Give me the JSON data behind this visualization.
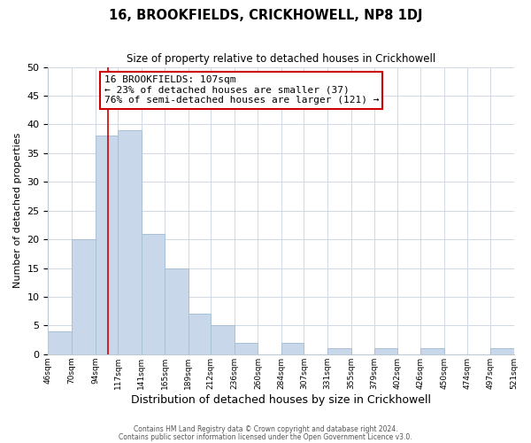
{
  "title": "16, BROOKFIELDS, CRICKHOWELL, NP8 1DJ",
  "subtitle": "Size of property relative to detached houses in Crickhowell",
  "xlabel": "Distribution of detached houses by size in Crickhowell",
  "ylabel": "Number of detached properties",
  "bin_edges": [
    46,
    70,
    94,
    117,
    141,
    165,
    189,
    212,
    236,
    260,
    284,
    307,
    331,
    355,
    379,
    402,
    426,
    450,
    474,
    497,
    521
  ],
  "bar_heights": [
    4,
    20,
    38,
    39,
    21,
    15,
    7,
    5,
    2,
    0,
    2,
    0,
    1,
    0,
    1,
    0,
    1,
    0,
    0,
    1
  ],
  "bar_color": "#c8d8ea",
  "bar_edgecolor": "#a8c0d4",
  "vline_x": 107,
  "vline_color": "#cc0000",
  "ylim": [
    0,
    50
  ],
  "yticks": [
    0,
    5,
    10,
    15,
    20,
    25,
    30,
    35,
    40,
    45,
    50
  ],
  "annotation_title": "16 BROOKFIELDS: 107sqm",
  "annotation_line1": "← 23% of detached houses are smaller (37)",
  "annotation_line2": "76% of semi-detached houses are larger (121) →",
  "annotation_box_color": "#ffffff",
  "annotation_box_edgecolor": "#cc0000",
  "footer_line1": "Contains HM Land Registry data © Crown copyright and database right 2024.",
  "footer_line2": "Contains public sector information licensed under the Open Government Licence v3.0.",
  "background_color": "#ffffff",
  "grid_color": "#d0d8e4"
}
